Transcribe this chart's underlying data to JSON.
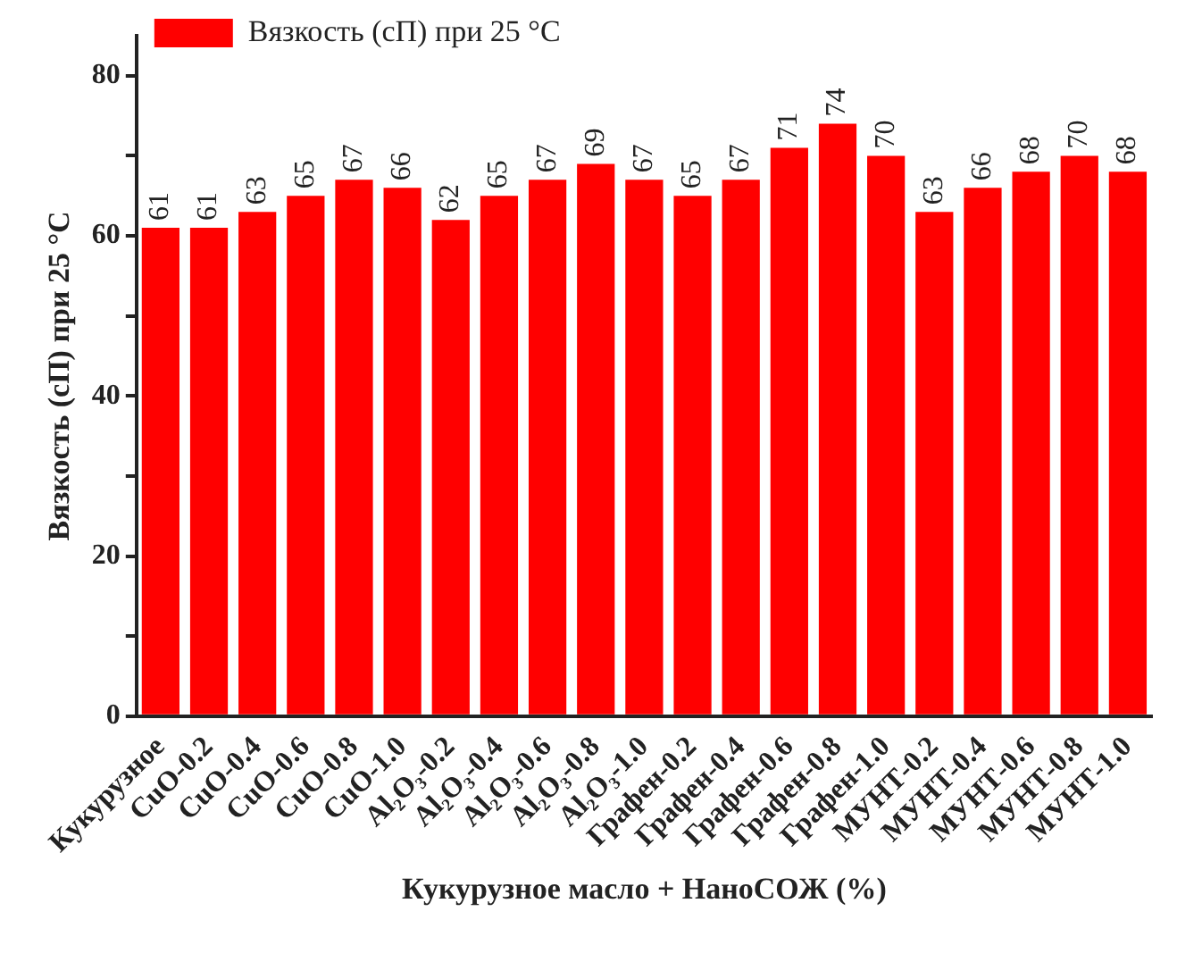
{
  "chart_data": {
    "type": "bar",
    "xlabel": "Кукурузное масло + НаноСОЖ (%)",
    "ylabel": "Вязкость (сП) при 25 °C",
    "categories": [
      "Кукурузное",
      "CuO-0.2",
      "CuO-0.4",
      "CuO-0.6",
      "CuO-0.8",
      "CuO-1.0",
      "Al₂O₃-0.2",
      "Al₂O₃-0.4",
      "Al₂O₃-0.6",
      "Al₂O₃-0.8",
      "Al₂O₃-1.0",
      "Графен-0.2",
      "Графен-0.4",
      "Графен-0.6",
      "Графен-0.8",
      "Графен-1.0",
      "МУНТ-0.2",
      "МУНТ-0.4",
      "МУНТ-0.6",
      "МУНТ-0.8",
      "МУНТ-1.0"
    ],
    "series": [
      {
        "name": "Вязкость (сП) при 25 °C",
        "color": "#ff0000",
        "values": [
          61,
          61,
          63,
          65,
          67,
          66,
          62,
          65,
          67,
          69,
          67,
          65,
          67,
          71,
          74,
          70,
          63,
          66,
          68,
          70,
          68
        ]
      }
    ],
    "ylim": [
      0,
      85
    ],
    "yticks": [
      0,
      {
        "value": 10,
        "label": null
      },
      20,
      {
        "value": 30,
        "label": null
      },
      40,
      {
        "value": 50,
        "label": null
      },
      60,
      {
        "value": 70,
        "label": null
      },
      80
    ],
    "data_labels": true,
    "grid": false,
    "legend": "top left"
  }
}
